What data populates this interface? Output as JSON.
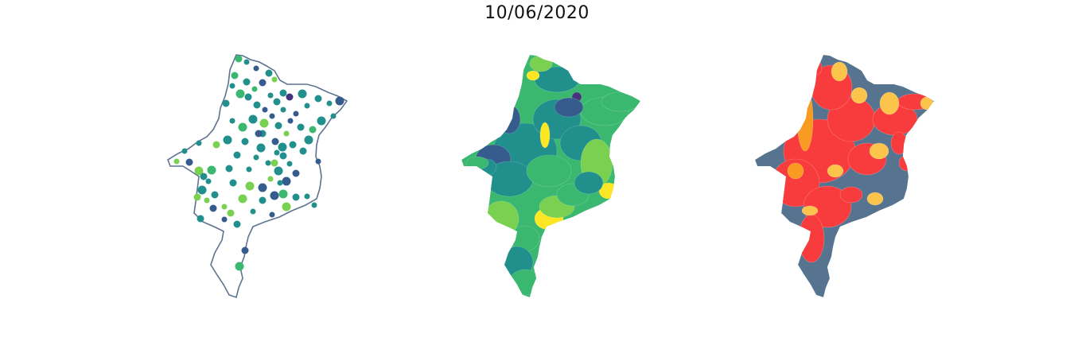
{
  "title": "10/06/2020",
  "colors": {
    "outline": "#5d7391",
    "viridis_dark": "#46337e",
    "viridis_blue": "#365c8d",
    "viridis_teal": "#21908d",
    "viridis_green": "#3bb86f",
    "viridis_lime": "#7ad151",
    "viridis_yellow": "#fde725",
    "risk_red": "#f83c3e",
    "risk_orange": "#f99b20",
    "risk_yellow": "#fdc44c",
    "risk_slate": "#567390"
  },
  "panels": [
    {
      "id": "points-map",
      "style": "points"
    },
    {
      "id": "choropleth-map",
      "style": "viridis"
    },
    {
      "id": "risk-map",
      "style": "risk"
    }
  ]
}
